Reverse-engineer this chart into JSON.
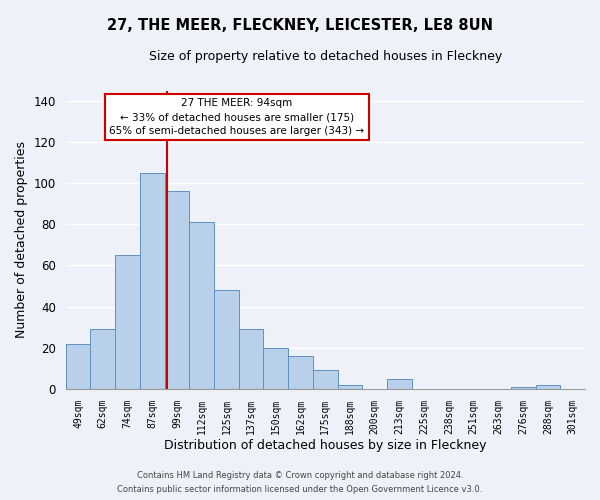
{
  "title": "27, THE MEER, FLECKNEY, LEICESTER, LE8 8UN",
  "subtitle": "Size of property relative to detached houses in Fleckney",
  "xlabel": "Distribution of detached houses by size in Fleckney",
  "ylabel": "Number of detached properties",
  "bar_labels": [
    "49sqm",
    "62sqm",
    "74sqm",
    "87sqm",
    "99sqm",
    "112sqm",
    "125sqm",
    "137sqm",
    "150sqm",
    "162sqm",
    "175sqm",
    "188sqm",
    "200sqm",
    "213sqm",
    "225sqm",
    "238sqm",
    "251sqm",
    "263sqm",
    "276sqm",
    "288sqm",
    "301sqm"
  ],
  "bar_values": [
    22,
    29,
    65,
    105,
    96,
    81,
    48,
    29,
    20,
    16,
    9,
    2,
    0,
    5,
    0,
    0,
    0,
    0,
    1,
    2,
    0
  ],
  "bar_color": "#b8d0ea",
  "bar_edge_color": "#6090c0",
  "ylim": [
    0,
    145
  ],
  "yticks": [
    0,
    20,
    40,
    60,
    80,
    100,
    120,
    140
  ],
  "subject_line_color": "#cc0000",
  "annotation_line1": "27 THE MEER: 94sqm",
  "annotation_line2": "← 33% of detached houses are smaller (175)",
  "annotation_line3": "65% of semi-detached houses are larger (343) →",
  "annotation_box_color": "#cc0000",
  "footer_line1": "Contains HM Land Registry data © Crown copyright and database right 2024.",
  "footer_line2": "Contains public sector information licensed under the Open Government Licence v3.0.",
  "background_color": "#eef2f8",
  "grid_color": "#ffffff"
}
